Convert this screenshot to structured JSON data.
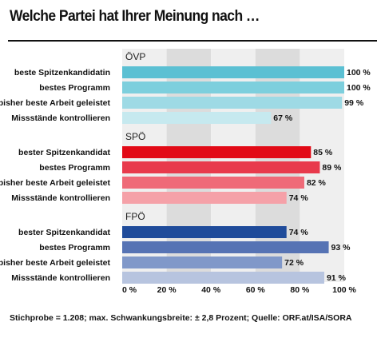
{
  "title": "Welche Partei hat Ihrer Meinung nach …",
  "footnote": "Stichprobe = 1.208; max. Schwankungsbreite: ± 2,8 Prozent; Quelle: ORF.at/ISA/SORA",
  "chart_data": {
    "type": "bar",
    "orientation": "horizontal",
    "title": "Welche Partei hat Ihrer Meinung nach …",
    "xlim": [
      0,
      100
    ],
    "x_ticks": [
      0,
      20,
      40,
      60,
      80,
      100
    ],
    "tick_suffix": " %",
    "value_suffix": " %",
    "grid": "alternating vertical bands",
    "groups": [
      {
        "name": "ÖVP",
        "bars": [
          {
            "label": "beste Spitzenkandidatin",
            "value": 100,
            "color": "#5bc0d3"
          },
          {
            "label": "bestes Programm",
            "value": 100,
            "color": "#7dcfdd"
          },
          {
            "label": "bisher beste Arbeit geleistet",
            "value": 99,
            "color": "#9edae5"
          },
          {
            "label": "Missstände kontrollieren",
            "value": 67,
            "color": "#c6e9ef"
          }
        ]
      },
      {
        "name": "SPÖ",
        "bars": [
          {
            "label": "bester Spitzenkandidat",
            "value": 85,
            "color": "#e20a16"
          },
          {
            "label": "bestes Programm",
            "value": 89,
            "color": "#e83a4c"
          },
          {
            "label": "bisher beste Arbeit geleistet",
            "value": 82,
            "color": "#ef6a78"
          },
          {
            "label": "Missstände kontrollieren",
            "value": 74,
            "color": "#f5a1a8"
          }
        ]
      },
      {
        "name": "FPÖ",
        "bars": [
          {
            "label": "bester Spitzenkandidat",
            "value": 74,
            "color": "#1f4b9a"
          },
          {
            "label": "bestes Programm",
            "value": 93,
            "color": "#5673b4"
          },
          {
            "label": "bisher beste Arbeit geleistet",
            "value": 72,
            "color": "#8098c9"
          },
          {
            "label": "Missstände kontrollieren",
            "value": 91,
            "color": "#b7c4df"
          }
        ]
      }
    ]
  }
}
